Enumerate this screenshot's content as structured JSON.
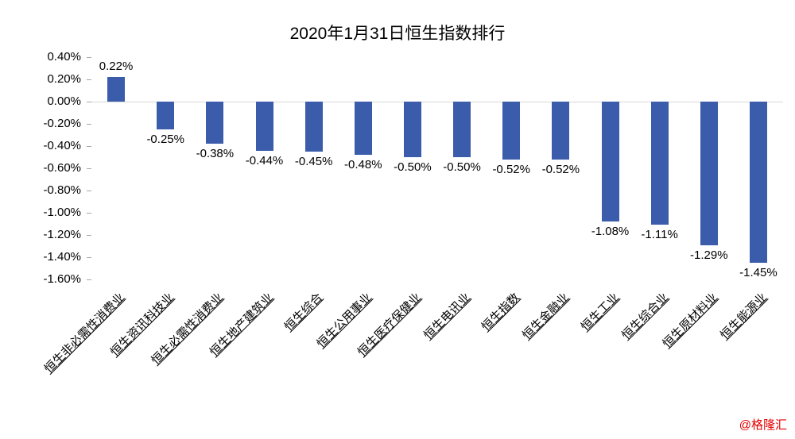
{
  "watermark": "@格隆汇",
  "watermark_color": "#e60000",
  "chart_data": {
    "type": "bar",
    "title": "2020年1月31日恒生指数排行",
    "categories": [
      "恒生非必需性消费业",
      "恒生资讯科技业",
      "恒生必需性消费业",
      "恒生地产建筑业",
      "恒生综合",
      "恒生公用事业",
      "恒生医疗保健业",
      "恒生电讯业",
      "恒生指数",
      "恒生金融业",
      "恒生工业",
      "恒生综合业",
      "恒生原材料业",
      "恒生能源业"
    ],
    "values": [
      0.22,
      -0.25,
      -0.38,
      -0.44,
      -0.45,
      -0.48,
      -0.5,
      -0.5,
      -0.52,
      -0.52,
      -1.08,
      -1.11,
      -1.29,
      -1.45
    ],
    "labels": [
      "0.22%",
      "-0.25%",
      "-0.38%",
      "-0.44%",
      "-0.45%",
      "-0.48%",
      "-0.50%",
      "-0.50%",
      "-0.52%",
      "-0.52%",
      "-1.08%",
      "-1.11%",
      "-1.29%",
      "-1.45%"
    ],
    "yticks": [
      "0.40%",
      "0.20%",
      "0.00%",
      "-0.20%",
      "-0.40%",
      "-0.60%",
      "-0.80%",
      "-1.00%",
      "-1.20%",
      "-1.40%",
      "-1.60%"
    ],
    "ylim": [
      -1.6,
      0.4
    ],
    "ytick_step": 0.2,
    "xlabel": "",
    "ylabel": "",
    "bar_color": "#3a5cab",
    "grid": false,
    "legend": "none"
  }
}
